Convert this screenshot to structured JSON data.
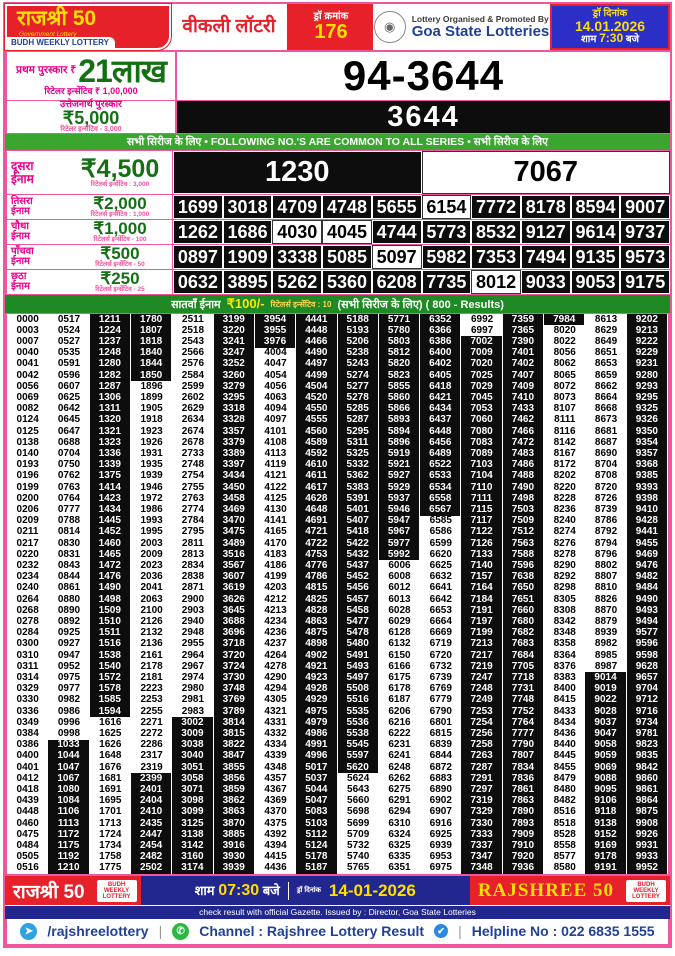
{
  "colors": {
    "red": "#e62129",
    "yellow": "#ffdf00",
    "navy": "#21409a",
    "blue": "#2b2fc6",
    "green_strip": "#3aa62f",
    "green_dark": "#1f8a24",
    "prize_green": "#157015",
    "magenta": "#ec008c",
    "pink_border": "#f0559e",
    "black_cell": "#0d0d0d"
  },
  "header": {
    "brand": "राजश्री 50",
    "brand_sub": "Government Lottery",
    "brand_badge": "BUDH WEEKLY LOTTERY",
    "weekly": "वीकली लॉटरी",
    "draw_no_label": "ड्रॉ क्रमांक",
    "draw_no": "176",
    "org_line1": "Lottery Organised & Promoted By",
    "org_line2": "Goa State Lotteries",
    "date_label": "ड्रॉ दिनांक",
    "date": "14.01.2026",
    "time_prefix": "शाम",
    "time": "7:30",
    "time_suffix": "बजे"
  },
  "first_prize": {
    "label": "प्रथम पुरस्कार ₹",
    "amount": "21लाख",
    "retailer": "रिटेलर इन्सेंटिव ₹ 1,00,000",
    "number": "94-3644"
  },
  "consolation": {
    "title": "उत्तेजनार्थ पुरस्कार",
    "amount": "₹5,000",
    "retailer": "रिटेलर इन्सेंटिव - 3,000",
    "number": "3644"
  },
  "common_strip": "सभी सिरीज के लिए  •  FOLLOWING NO.'S ARE COMMON TO ALL SERIES •  सभी सिरीज के लिए",
  "prizes": [
    {
      "key": "second",
      "name1": "दूसरा",
      "name2": "ईनाम",
      "amount": "₹4,500",
      "retailer": "रिटेलर्स इन्सेंटिव : 3,000",
      "numbers": [
        "1230",
        "7067"
      ],
      "highlight": [
        1
      ]
    },
    {
      "key": "third",
      "name1": "तिसरा",
      "name2": "ईनाम",
      "amount": "₹2,000",
      "retailer": "रिटेलर्स इन्सेंटिव : 1,000",
      "numbers": [
        "1699",
        "3018",
        "4709",
        "4748",
        "5655",
        "6154",
        "7772",
        "8178",
        "8594",
        "9007"
      ],
      "highlight": [
        5
      ]
    },
    {
      "key": "fourth",
      "name1": "चौथा",
      "name2": "ईनाम",
      "amount": "₹1,000",
      "retailer": "रिटेलर्स इन्सेंटिव - 100",
      "numbers": [
        "1262",
        "1686",
        "4030",
        "4045",
        "4744",
        "5773",
        "8532",
        "9127",
        "9614",
        "9737"
      ],
      "highlight": [
        2,
        3
      ]
    },
    {
      "key": "fifth",
      "name1": "पाँचवा",
      "name2": "ईनाम",
      "amount": "₹500",
      "retailer": "रिटेलर्स इन्सेंटिव - 50",
      "numbers": [
        "0897",
        "1909",
        "3338",
        "5085",
        "5097",
        "5982",
        "7353",
        "7494",
        "9135",
        "9573"
      ],
      "highlight": [
        4
      ]
    },
    {
      "key": "sixth",
      "name1": "छठा",
      "name2": "ईनाम",
      "amount": "₹250",
      "retailer": "रिटेलर्स इन्सेंटिव - 25",
      "numbers": [
        "0632",
        "3895",
        "5262",
        "5360",
        "6208",
        "7735",
        "8012",
        "9033",
        "9053",
        "9175"
      ],
      "highlight": [
        6
      ]
    }
  ],
  "seventh": {
    "label": "सातवाँ ईनाम",
    "amount": "₹100/-",
    "retailer": "रिटेलर्स इन्सेंटिव : 10",
    "note": "(सभी सिरीज के लिए) ( 800 - Results)"
  },
  "results_table": {
    "columns": [
      [
        "0000",
        "0003",
        "0007",
        "0040",
        "0041",
        "0042",
        "0056",
        "0069",
        "0082",
        "0124",
        "0125",
        "0138",
        "0140",
        "0193",
        "0196",
        "0199",
        "0200",
        "0206",
        "0209",
        "0211",
        "0217",
        "0220",
        "0232",
        "0234",
        "0240",
        "0264",
        "0268",
        "0278",
        "0284",
        "0300",
        "0310",
        "0311",
        "0314",
        "0329",
        "0330",
        "0336",
        "0349",
        "0384",
        "0386",
        "0400",
        "0401",
        "0412",
        "0418",
        "0439",
        "0448",
        "0460",
        "0475",
        "0484",
        "0505",
        "0516"
      ],
      [
        "0517",
        "0524",
        "0527",
        "0535",
        "0591",
        "0596",
        "0607",
        "0625",
        "0642",
        "0645",
        "0647",
        "0688",
        "0704",
        "0750",
        "0762",
        "0763",
        "0764",
        "0777",
        "0788",
        "0814",
        "0830",
        "0831",
        "0843",
        "0844",
        "0861",
        "0880",
        "0890",
        "0892",
        "0925",
        "0927",
        "0947",
        "0952",
        "0975",
        "0977",
        "0982",
        "0986",
        "0996",
        "0998",
        "1033",
        "1044",
        "1047",
        "1067",
        "1080",
        "1084",
        "1106",
        "1113",
        "1172",
        "1175",
        "1192",
        "1210"
      ],
      [
        "1211",
        "1224",
        "1237",
        "1248",
        "1280",
        "1282",
        "1287",
        "1306",
        "1311",
        "1320",
        "1321",
        "1323",
        "1336",
        "1339",
        "1375",
        "1414",
        "1423",
        "1434",
        "1445",
        "1452",
        "1460",
        "1465",
        "1472",
        "1476",
        "1490",
        "1498",
        "1509",
        "1510",
        "1511",
        "1516",
        "1538",
        "1540",
        "1572",
        "1578",
        "1585",
        "1594",
        "1616",
        "1625",
        "1626",
        "1648",
        "1676",
        "1681",
        "1691",
        "1695",
        "1701",
        "1713",
        "1724",
        "1734",
        "1758",
        "1775"
      ],
      [
        "1780",
        "1807",
        "1818",
        "1840",
        "1844",
        "1850",
        "1896",
        "1899",
        "1905",
        "1918",
        "1923",
        "1926",
        "1931",
        "1935",
        "1939",
        "1946",
        "1972",
        "1986",
        "1993",
        "1995",
        "2003",
        "2009",
        "2023",
        "2036",
        "2041",
        "2063",
        "2100",
        "2126",
        "2132",
        "2136",
        "2161",
        "2178",
        "2181",
        "2223",
        "2253",
        "2255",
        "2271",
        "2272",
        "2286",
        "2317",
        "2319",
        "2399",
        "2401",
        "2404",
        "2410",
        "2435",
        "2447",
        "2454",
        "2482",
        "2502"
      ],
      [
        "2511",
        "2518",
        "2543",
        "2566",
        "2576",
        "2584",
        "2599",
        "2602",
        "2629",
        "2634",
        "2674",
        "2678",
        "2733",
        "2748",
        "2754",
        "2755",
        "2763",
        "2774",
        "2784",
        "2795",
        "2811",
        "2813",
        "2834",
        "2838",
        "2871",
        "2900",
        "2903",
        "2940",
        "2948",
        "2955",
        "2964",
        "2967",
        "2974",
        "2980",
        "2981",
        "2983",
        "3002",
        "3009",
        "3038",
        "3040",
        "3051",
        "3058",
        "3071",
        "3098",
        "3099",
        "3125",
        "3138",
        "3142",
        "3160",
        "3174"
      ],
      [
        "3199",
        "3220",
        "3241",
        "3247",
        "3252",
        "3260",
        "3279",
        "3295",
        "3318",
        "3328",
        "3357",
        "3379",
        "3389",
        "3397",
        "3434",
        "3450",
        "3458",
        "3469",
        "3470",
        "3475",
        "3489",
        "3516",
        "3567",
        "3607",
        "3619",
        "3626",
        "3645",
        "3688",
        "3696",
        "3718",
        "3720",
        "3724",
        "3730",
        "3748",
        "3769",
        "3789",
        "3814",
        "3815",
        "3822",
        "3847",
        "3855",
        "3856",
        "3859",
        "3862",
        "3863",
        "3870",
        "3885",
        "3916",
        "3930",
        "3939"
      ],
      [
        "3954",
        "3955",
        "3976",
        "4004",
        "4047",
        "4054",
        "4056",
        "4063",
        "4094",
        "4097",
        "4101",
        "4108",
        "4113",
        "4119",
        "4121",
        "4122",
        "4125",
        "4130",
        "4141",
        "4165",
        "4170",
        "4183",
        "4186",
        "4199",
        "4203",
        "4212",
        "4213",
        "4234",
        "4236",
        "4237",
        "4264",
        "4278",
        "4290",
        "4294",
        "4305",
        "4321",
        "4331",
        "4332",
        "4334",
        "4339",
        "4348",
        "4357",
        "4367",
        "4369",
        "4370",
        "4375",
        "4392",
        "4394",
        "4415",
        "4436"
      ],
      [
        "4441",
        "4448",
        "4466",
        "4490",
        "4497",
        "4499",
        "4504",
        "4520",
        "4550",
        "4555",
        "4560",
        "4589",
        "4592",
        "4610",
        "4611",
        "4617",
        "4628",
        "4648",
        "4691",
        "4721",
        "4722",
        "4753",
        "4776",
        "4786",
        "4815",
        "4825",
        "4828",
        "4863",
        "4875",
        "4898",
        "4902",
        "4921",
        "4923",
        "4928",
        "4929",
        "4975",
        "4979",
        "4986",
        "4991",
        "4996",
        "5017",
        "5037",
        "5044",
        "5047",
        "5083",
        "5103",
        "5112",
        "5124",
        "5178",
        "5187"
      ],
      [
        "5188",
        "5193",
        "5206",
        "5238",
        "5243",
        "5274",
        "5277",
        "5278",
        "5285",
        "5287",
        "5295",
        "5311",
        "5325",
        "5332",
        "5362",
        "5383",
        "5391",
        "5401",
        "5407",
        "5418",
        "5422",
        "5432",
        "5437",
        "5452",
        "5456",
        "5457",
        "5458",
        "5477",
        "5478",
        "5480",
        "5491",
        "5493",
        "5497",
        "5508",
        "5516",
        "5535",
        "5536",
        "5538",
        "5545",
        "5597",
        "5620",
        "5624",
        "5643",
        "5660",
        "5698",
        "5699",
        "5709",
        "5732",
        "5740",
        "5765"
      ],
      [
        "5771",
        "5780",
        "5803",
        "5812",
        "5820",
        "5823",
        "5855",
        "5860",
        "5866",
        "5893",
        "5894",
        "5896",
        "5919",
        "5921",
        "5927",
        "5929",
        "5937",
        "5946",
        "5947",
        "5967",
        "5977",
        "5992",
        "6006",
        "6008",
        "6012",
        "6013",
        "6028",
        "6029",
        "6128",
        "6132",
        "6150",
        "6166",
        "6175",
        "6178",
        "6187",
        "6206",
        "6216",
        "6222",
        "6231",
        "6241",
        "6248",
        "6262",
        "6275",
        "6291",
        "6294",
        "6310",
        "6324",
        "6325",
        "6335",
        "6351"
      ],
      [
        "6352",
        "6366",
        "6386",
        "6400",
        "6402",
        "6405",
        "6418",
        "6421",
        "6434",
        "6437",
        "6448",
        "6456",
        "6489",
        "6522",
        "6533",
        "6534",
        "6558",
        "6567",
        "6585",
        "6586",
        "6599",
        "6620",
        "6625",
        "6632",
        "6641",
        "6642",
        "6653",
        "6664",
        "6669",
        "6719",
        "6720",
        "6732",
        "6739",
        "6769",
        "6779",
        "6790",
        "6801",
        "6815",
        "6839",
        "6844",
        "6872",
        "6883",
        "6890",
        "6902",
        "6907",
        "6916",
        "6925",
        "6939",
        "6953",
        "6975"
      ],
      [
        "6992",
        "6997",
        "7002",
        "7009",
        "7020",
        "7025",
        "7029",
        "7045",
        "7053",
        "7060",
        "7080",
        "7083",
        "7089",
        "7103",
        "7104",
        "7110",
        "7111",
        "7115",
        "7117",
        "7122",
        "7126",
        "7133",
        "7140",
        "7157",
        "7164",
        "7184",
        "7191",
        "7197",
        "7199",
        "7213",
        "7217",
        "7219",
        "7247",
        "7248",
        "7249",
        "7253",
        "7254",
        "7256",
        "7258",
        "7263",
        "7287",
        "7291",
        "7297",
        "7319",
        "7329",
        "7330",
        "7333",
        "7337",
        "7347",
        "7348"
      ],
      [
        "7359",
        "7365",
        "7390",
        "7401",
        "7402",
        "7407",
        "7409",
        "7410",
        "7433",
        "7462",
        "7466",
        "7472",
        "7483",
        "7486",
        "7488",
        "7490",
        "7498",
        "7503",
        "7509",
        "7512",
        "7563",
        "7588",
        "7596",
        "7638",
        "7650",
        "7651",
        "7660",
        "7680",
        "7682",
        "7683",
        "7684",
        "7705",
        "7718",
        "7731",
        "7748",
        "7752",
        "7764",
        "7777",
        "7790",
        "7807",
        "7834",
        "7836",
        "7861",
        "7863",
        "7890",
        "7893",
        "7909",
        "7910",
        "7920",
        "7936"
      ],
      [
        "7984",
        "8020",
        "8022",
        "8056",
        "8062",
        "8065",
        "8072",
        "8073",
        "8107",
        "8111",
        "8116",
        "8142",
        "8167",
        "8172",
        "8202",
        "8220",
        "8228",
        "8236",
        "8240",
        "8274",
        "8276",
        "8278",
        "8290",
        "8292",
        "8298",
        "8305",
        "8308",
        "8342",
        "8348",
        "8358",
        "8364",
        "8376",
        "8383",
        "8400",
        "8415",
        "8433",
        "8434",
        "8436",
        "8440",
        "8445",
        "8455",
        "8479",
        "8480",
        "8482",
        "8516",
        "8518",
        "8528",
        "8558",
        "8577",
        "8580"
      ],
      [
        "8613",
        "8629",
        "8649",
        "8651",
        "8653",
        "8659",
        "8662",
        "8664",
        "8668",
        "8673",
        "8681",
        "8687",
        "8690",
        "8704",
        "8708",
        "8720",
        "8726",
        "8739",
        "8786",
        "8792",
        "8794",
        "8796",
        "8802",
        "8807",
        "8810",
        "8826",
        "8870",
        "8879",
        "8939",
        "8982",
        "8985",
        "8987",
        "9014",
        "9019",
        "9022",
        "9028",
        "9037",
        "9047",
        "9058",
        "9059",
        "9069",
        "9088",
        "9095",
        "9106",
        "9118",
        "9138",
        "9152",
        "9169",
        "9178",
        "9191"
      ],
      [
        "9202",
        "9213",
        "9222",
        "9229",
        "9231",
        "9280",
        "9293",
        "9295",
        "9325",
        "9326",
        "9350",
        "9354",
        "9357",
        "9368",
        "9385",
        "9393",
        "9398",
        "9410",
        "9428",
        "9441",
        "9455",
        "9469",
        "9476",
        "9482",
        "9484",
        "9490",
        "9493",
        "9494",
        "9577",
        "9596",
        "9598",
        "9628",
        "9657",
        "9704",
        "9712",
        "9716",
        "9734",
        "9781",
        "9823",
        "9835",
        "9842",
        "9860",
        "9861",
        "9864",
        "9875",
        "9908",
        "9926",
        "9931",
        "9933",
        "9952"
      ]
    ],
    "col_styles": [
      {
        "start": "w",
        "flips": []
      },
      {
        "start": "w",
        "flips": [
          39
        ]
      },
      {
        "start": "b",
        "flips": [
          37
        ]
      },
      {
        "start": "b",
        "flips": [
          7,
          42
        ]
      },
      {
        "start": "w",
        "flips": [
          37
        ]
      },
      {
        "start": "b",
        "flips": []
      },
      {
        "start": "b",
        "flips": [
          4
        ]
      },
      {
        "start": "b",
        "flips": []
      },
      {
        "start": "b",
        "flips": [
          42
        ]
      },
      {
        "start": "b",
        "flips": [
          23
        ]
      },
      {
        "start": "b",
        "flips": [
          19
        ]
      },
      {
        "start": "w",
        "flips": [
          3
        ]
      },
      {
        "start": "b",
        "flips": []
      },
      {
        "start": "b",
        "flips": [
          2
        ]
      },
      {
        "start": "w",
        "flips": [
          33
        ]
      },
      {
        "start": "b",
        "flips": []
      }
    ]
  },
  "footer": {
    "brand_left": "राजश्री 50",
    "badge": "BUDH WEEKLY LOTTERY",
    "time_prefix": "शाम",
    "time": "07:30",
    "time_suffix": "बजे",
    "date_label": "ड्रॉ दिनांक",
    "date": "14-01-2026",
    "brand_right": "RAJSHREE 50",
    "gazette": "check result with official Gazette. Issued by : Director, Goa State Lotteries",
    "telegram": "/rajshreelottery",
    "channel": "Channel : Rajshree Lottery Result",
    "helpline": "Helpline No : 022 6835 1555",
    "separator": "|"
  }
}
